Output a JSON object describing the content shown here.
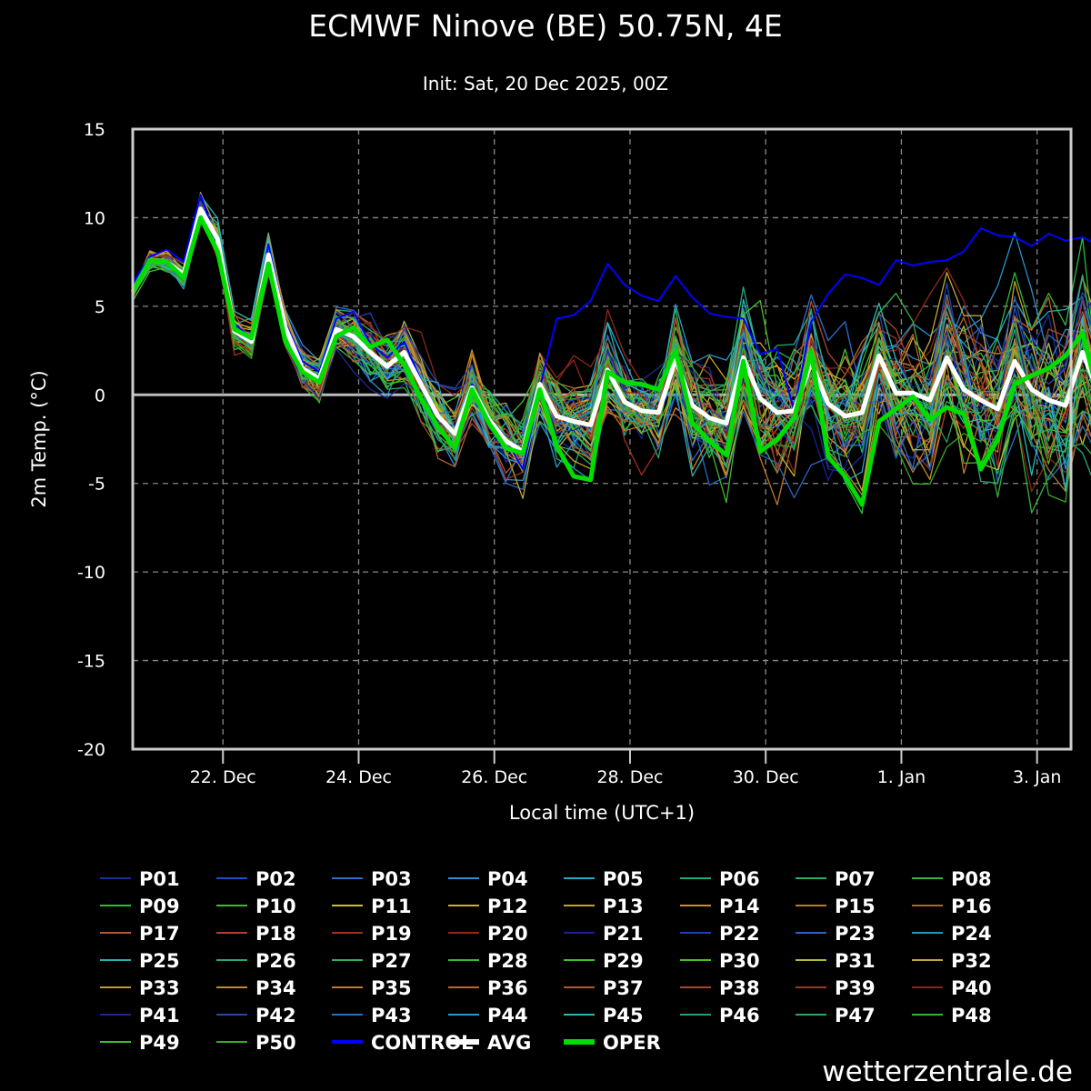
{
  "chart_data": {
    "type": "line",
    "title": "ECMWF Ninove (BE) 50.75N, 4E",
    "subtitle": "Init: Sat, 20 Dec 2025, 00Z",
    "xlabel": "Local time (UTC+1)",
    "ylabel": "2m Temp. (°C)",
    "ylim": [
      -20,
      15
    ],
    "xlim_days": [
      20.67,
      34.5
    ],
    "yticks": [
      15,
      10,
      5,
      0,
      -5,
      -10,
      -15,
      -20
    ],
    "xticks": [
      {
        "day": 22,
        "label": "22. Dec"
      },
      {
        "day": 24,
        "label": "24. Dec"
      },
      {
        "day": 26,
        "label": "26. Dec"
      },
      {
        "day": 28,
        "label": "28. Dec"
      },
      {
        "day": 30,
        "label": "30. Dec"
      },
      {
        "day": 32,
        "label": "1. Jan"
      },
      {
        "day": 34,
        "label": "3. Jan"
      }
    ],
    "grid": true,
    "x_start_day": 20.67,
    "x_step_days": 0.25,
    "avg": [
      5.8,
      7.6,
      7.5,
      6.8,
      10.5,
      8.8,
      3.6,
      3.0,
      7.9,
      3.8,
      1.5,
      0.9,
      3.7,
      3.3,
      2.4,
      1.6,
      2.4,
      0.6,
      -1.2,
      -2.2,
      0.4,
      -1.4,
      -2.6,
      -3.2,
      0.6,
      -1.2,
      -1.5,
      -1.7,
      1.4,
      -0.4,
      -0.9,
      -1.0,
      2.0,
      -0.6,
      -1.3,
      -1.6,
      2.1,
      -0.2,
      -1.0,
      -0.9,
      1.8,
      -0.5,
      -1.2,
      -1.0,
      2.2,
      0.1,
      0.1,
      -0.3,
      2.1,
      0.3,
      -0.3,
      -0.8,
      1.9,
      0.3,
      -0.3,
      -0.6,
      2.4,
      0.0,
      -0.5
    ],
    "oper": [
      5.8,
      7.6,
      7.5,
      6.6,
      10.0,
      8.1,
      3.7,
      3.2,
      7.4,
      3.0,
      1.3,
      0.7,
      3.3,
      3.8,
      2.7,
      3.1,
      1.7,
      -0.2,
      -1.8,
      -3.0,
      0.3,
      -1.6,
      -3.0,
      -3.3,
      0.3,
      -2.9,
      -4.6,
      -4.8,
      1.3,
      0.7,
      0.6,
      0.3,
      2.5,
      -1.6,
      -2.6,
      -3.4,
      1.9,
      -3.2,
      -2.5,
      -1.3,
      2.4,
      -3.5,
      -4.6,
      -6.2,
      -1.5,
      -0.8,
      -0.1,
      -1.4,
      -0.7,
      -1.1,
      -4.2,
      -2.5,
      0.6,
      1.1,
      1.5,
      2.2,
      3.5,
      -0.3,
      -2.0
    ],
    "control": [
      6.3,
      7.8,
      8.2,
      7.5,
      11.3,
      8.5,
      4.0,
      3.2,
      8.5,
      4.1,
      1.9,
      1.3,
      4.3,
      4.7,
      2.9,
      2.1,
      3.0,
      0.8,
      -1.1,
      -2.3,
      0.6,
      -1.5,
      -2.5,
      -4.2,
      0.4,
      4.3,
      4.5,
      5.3,
      7.4,
      6.2,
      5.6,
      5.3,
      6.7,
      5.5,
      4.6,
      4.4,
      4.3,
      2.3,
      2.6,
      -0.9,
      4.1,
      5.7,
      6.8,
      6.6,
      6.2,
      7.6,
      7.3,
      7.5,
      7.6,
      8.1,
      9.4,
      9.0,
      8.9,
      8.4,
      9.1,
      8.7,
      8.9,
      8.4,
      8.1
    ],
    "members": {
      "names": [
        "P01",
        "P02",
        "P03",
        "P04",
        "P05",
        "P06",
        "P07",
        "P08",
        "P09",
        "P10",
        "P11",
        "P12",
        "P13",
        "P14",
        "P15",
        "P16",
        "P17",
        "P18",
        "P19",
        "P20",
        "P21",
        "P22",
        "P23",
        "P24",
        "P25",
        "P26",
        "P27",
        "P28",
        "P29",
        "P30",
        "P31",
        "P32",
        "P33",
        "P34",
        "P35",
        "P36",
        "P37",
        "P38",
        "P39",
        "P40",
        "P41",
        "P42",
        "P43",
        "P44",
        "P45",
        "P46",
        "P47",
        "P48",
        "P49",
        "P50"
      ],
      "colors": [
        "#1a2fa0",
        "#1f4fc0",
        "#2a6fd0",
        "#2a8fd8",
        "#2aa8c8",
        "#20a880",
        "#28b060",
        "#30b840",
        "#28c030",
        "#38c028",
        "#c8c030",
        "#c8b030",
        "#c8a028",
        "#c89028",
        "#c07828",
        "#b86030",
        "#b05838",
        "#b04030",
        "#a03020",
        "#902818",
        "#18209a",
        "#2040b0",
        "#2868c0",
        "#2a90c8",
        "#2ab0b0",
        "#28a878",
        "#30b050",
        "#38b838",
        "#40c030",
        "#48c028",
        "#b8b838",
        "#c0a838",
        "#c09838",
        "#c08830",
        "#c07830",
        "#b86830",
        "#b05830",
        "#a84828",
        "#983820",
        "#882818",
        "#202890",
        "#2848a8",
        "#2870c0",
        "#2a98c8",
        "#2ab8b8",
        "#28a070",
        "#30a858",
        "#38b040",
        "#40b838",
        "#38a828"
      ]
    },
    "legend": [
      {
        "label": "P01",
        "color": "#1a2fa0",
        "width": 2
      },
      {
        "label": "P02",
        "color": "#1f4fc0",
        "width": 2
      },
      {
        "label": "P03",
        "color": "#2a6fd0",
        "width": 2
      },
      {
        "label": "P04",
        "color": "#2a8fd8",
        "width": 2
      },
      {
        "label": "P05",
        "color": "#2aa8c8",
        "width": 2
      },
      {
        "label": "P06",
        "color": "#20a880",
        "width": 2
      },
      {
        "label": "P07",
        "color": "#28b060",
        "width": 2
      },
      {
        "label": "P08",
        "color": "#30b840",
        "width": 2
      },
      {
        "label": "P09",
        "color": "#28c030",
        "width": 2
      },
      {
        "label": "P10",
        "color": "#38c028",
        "width": 2
      },
      {
        "label": "P11",
        "color": "#c8c030",
        "width": 2
      },
      {
        "label": "P12",
        "color": "#c8b030",
        "width": 2
      },
      {
        "label": "P13",
        "color": "#c8a028",
        "width": 2
      },
      {
        "label": "P14",
        "color": "#c89028",
        "width": 2
      },
      {
        "label": "P15",
        "color": "#c07828",
        "width": 2
      },
      {
        "label": "P16",
        "color": "#b86030",
        "width": 2
      },
      {
        "label": "P17",
        "color": "#b05838",
        "width": 2
      },
      {
        "label": "P18",
        "color": "#b04030",
        "width": 2
      },
      {
        "label": "P19",
        "color": "#a03020",
        "width": 2
      },
      {
        "label": "P20",
        "color": "#902818",
        "width": 2
      },
      {
        "label": "P21",
        "color": "#18209a",
        "width": 2
      },
      {
        "label": "P22",
        "color": "#2040b0",
        "width": 2
      },
      {
        "label": "P23",
        "color": "#2868c0",
        "width": 2
      },
      {
        "label": "P24",
        "color": "#2a90c8",
        "width": 2
      },
      {
        "label": "P25",
        "color": "#2ab0b0",
        "width": 2
      },
      {
        "label": "P26",
        "color": "#28a878",
        "width": 2
      },
      {
        "label": "P27",
        "color": "#30b050",
        "width": 2
      },
      {
        "label": "P28",
        "color": "#38b838",
        "width": 2
      },
      {
        "label": "P29",
        "color": "#40c030",
        "width": 2
      },
      {
        "label": "P30",
        "color": "#48c028",
        "width": 2
      },
      {
        "label": "P31",
        "color": "#b8b838",
        "width": 2
      },
      {
        "label": "P32",
        "color": "#c0a838",
        "width": 2
      },
      {
        "label": "P33",
        "color": "#c09838",
        "width": 2
      },
      {
        "label": "P34",
        "color": "#c08830",
        "width": 2
      },
      {
        "label": "P35",
        "color": "#c07830",
        "width": 2
      },
      {
        "label": "P36",
        "color": "#b86830",
        "width": 2
      },
      {
        "label": "P37",
        "color": "#b05830",
        "width": 2
      },
      {
        "label": "P38",
        "color": "#a84828",
        "width": 2
      },
      {
        "label": "P39",
        "color": "#983820",
        "width": 2
      },
      {
        "label": "P40",
        "color": "#882818",
        "width": 2
      },
      {
        "label": "P41",
        "color": "#202890",
        "width": 2
      },
      {
        "label": "P42",
        "color": "#2848a8",
        "width": 2
      },
      {
        "label": "P43",
        "color": "#2870c0",
        "width": 2
      },
      {
        "label": "P44",
        "color": "#2a98c8",
        "width": 2
      },
      {
        "label": "P45",
        "color": "#2ab8b8",
        "width": 2
      },
      {
        "label": "P46",
        "color": "#28a070",
        "width": 2
      },
      {
        "label": "P47",
        "color": "#30a858",
        "width": 2
      },
      {
        "label": "P48",
        "color": "#38b040",
        "width": 2
      },
      {
        "label": "P49",
        "color": "#40b838",
        "width": 2
      },
      {
        "label": "P50",
        "color": "#38a828",
        "width": 2
      },
      {
        "label": "CONTROL",
        "color": "#0000ff",
        "width": 4
      },
      {
        "label": "AVG",
        "color": "#ffffff",
        "width": 6
      },
      {
        "label": "OPER",
        "color": "#00dd00",
        "width": 6
      }
    ]
  },
  "colors": {
    "background": "#000000",
    "grid": "#888888",
    "frame": "#cccccc",
    "zero_line": "#bbbbbb"
  },
  "watermark": "wetterzentrale.de"
}
